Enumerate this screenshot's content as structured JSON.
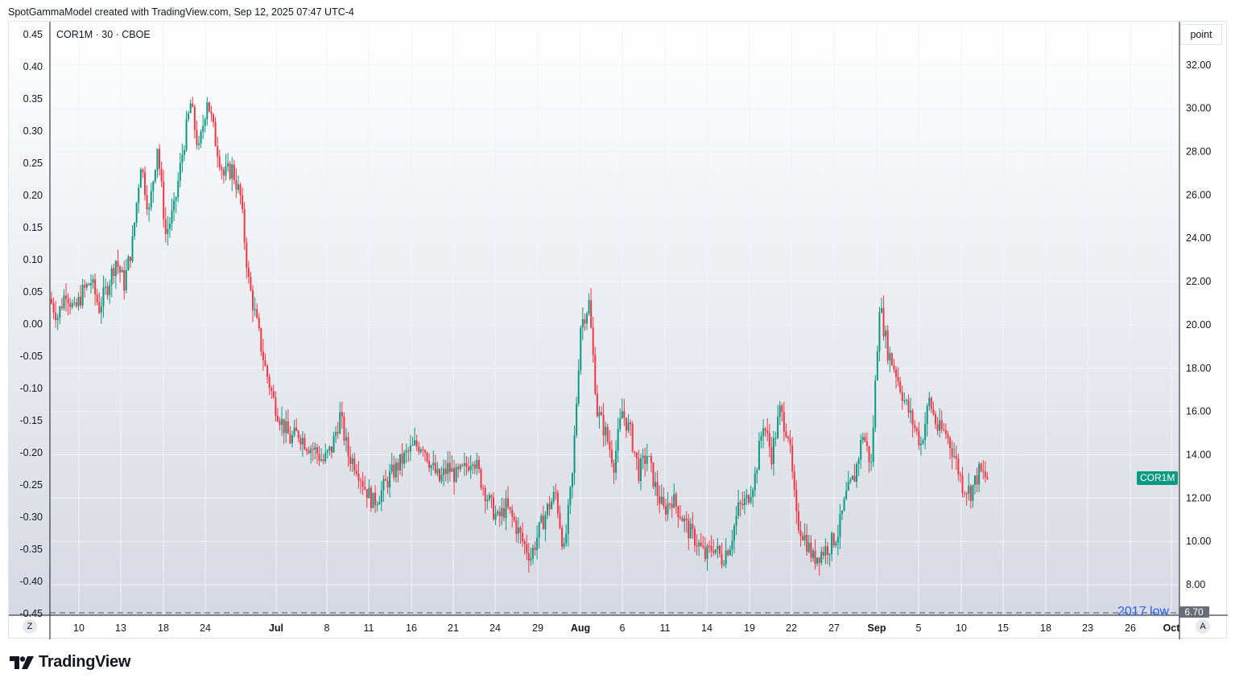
{
  "header": {
    "text": "SpotGammaModel created with TradingView.com, Sep 12, 2025 07:47 UTC-4"
  },
  "legend": {
    "text": "COR1M · 30 · CBOE"
  },
  "unit_label": "point",
  "price_tag": "COR1M",
  "low_line": {
    "label": "2017 low",
    "value_label": "6.70"
  },
  "corners": {
    "left": "Z",
    "right": "A"
  },
  "footer": {
    "brand": "TradingView"
  },
  "colors": {
    "up": "#089981",
    "down": "#f23645",
    "low_label": "#2962ff",
    "grid": "#f0f3fa"
  },
  "chart_data": {
    "type": "candlestick",
    "left_axis": {
      "ticks": [
        "0.45",
        "0.40",
        "0.35",
        "0.30",
        "0.25",
        "0.20",
        "0.15",
        "0.10",
        "0.05",
        "0.00",
        "-0.05",
        "-0.10",
        "-0.15",
        "-0.20",
        "-0.25",
        "-0.30",
        "-0.35",
        "-0.40",
        "-0.45"
      ],
      "range": [
        -0.45,
        0.45
      ]
    },
    "right_axis": {
      "ticks": [
        "32.00",
        "30.00",
        "28.00",
        "26.00",
        "24.00",
        "22.00",
        "20.00",
        "18.00",
        "16.00",
        "14.00",
        "12.00",
        "10.00",
        "8.00"
      ],
      "range": [
        6.7,
        34.0
      ]
    },
    "x_ticks": [
      {
        "label": "10",
        "bold": false
      },
      {
        "label": "13",
        "bold": false
      },
      {
        "label": "18",
        "bold": false
      },
      {
        "label": "24",
        "bold": false
      },
      {
        "label": "Jul",
        "bold": true
      },
      {
        "label": "8",
        "bold": false
      },
      {
        "label": "11",
        "bold": false
      },
      {
        "label": "16",
        "bold": false
      },
      {
        "label": "21",
        "bold": false
      },
      {
        "label": "24",
        "bold": false
      },
      {
        "label": "29",
        "bold": false
      },
      {
        "label": "Aug",
        "bold": true
      },
      {
        "label": "6",
        "bold": false
      },
      {
        "label": "11",
        "bold": false
      },
      {
        "label": "14",
        "bold": false
      },
      {
        "label": "19",
        "bold": false
      },
      {
        "label": "22",
        "bold": false
      },
      {
        "label": "27",
        "bold": false
      },
      {
        "label": "Sep",
        "bold": true
      },
      {
        "label": "5",
        "bold": false
      },
      {
        "label": "10",
        "bold": false
      },
      {
        "label": "15",
        "bold": false
      },
      {
        "label": "18",
        "bold": false
      },
      {
        "label": "23",
        "bold": false
      },
      {
        "label": "26",
        "bold": false
      },
      {
        "label": "Oct",
        "bold": true
      }
    ],
    "series": [
      {
        "closes": [
          21.2,
          20.4,
          21.6,
          20.6,
          21.5,
          22.0,
          20.8,
          21.8,
          23.0,
          21.9,
          23.8,
          27.5,
          25.2,
          28.3,
          24.2,
          25.3,
          27.9,
          30.2,
          28.0,
          30.5,
          28.5,
          26.9,
          27.2,
          25.9,
          22.0,
          20.0,
          18.0,
          16.5,
          15.5,
          14.7,
          15.0,
          14.5,
          14.2,
          13.7,
          14.3,
          15.8,
          14.0,
          13.5,
          12.5,
          11.8,
          12.3,
          13.0,
          13.5,
          14.0,
          14.4,
          14.5,
          13.5,
          12.8,
          13.4,
          13.0,
          13.3,
          14.0,
          12.8,
          11.8,
          11.0,
          11.6,
          10.9,
          10.0,
          9.3,
          10.5,
          11.5,
          12.2,
          9.5,
          13.0,
          20.0,
          21.0,
          16.0,
          15.0,
          13.6,
          16.0,
          15.0,
          13.2,
          14.0,
          12.5,
          11.4,
          12.0,
          11.3,
          10.5,
          10.0,
          9.3,
          9.8,
          9.2,
          9.9,
          11.5,
          11.9,
          13.0,
          15.5,
          14.0,
          16.0,
          15.0,
          11.0,
          10.2,
          9.2,
          9.5,
          9.8,
          10.4,
          12.1,
          13.0,
          15.0,
          13.5,
          21.0,
          18.8,
          17.8,
          16.5,
          15.5,
          14.5,
          16.5,
          15.2,
          15.0,
          14.0,
          12.6,
          12.3,
          13.2,
          12.9
        ]
      }
    ]
  }
}
